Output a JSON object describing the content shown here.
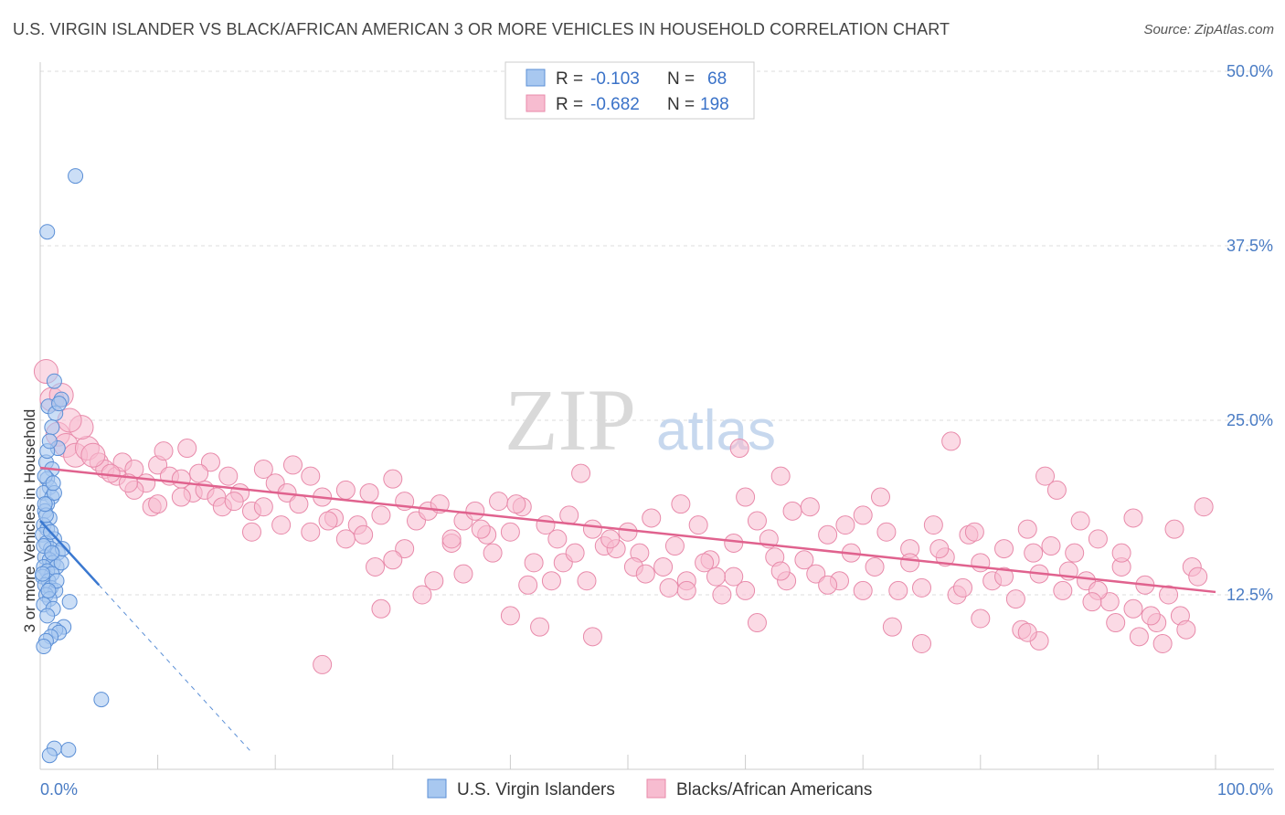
{
  "title": "U.S. VIRGIN ISLANDER VS BLACK/AFRICAN AMERICAN 3 OR MORE VEHICLES IN HOUSEHOLD CORRELATION CHART",
  "source": "Source: ZipAtlas.com",
  "watermark": {
    "zip": "ZIP",
    "atlas": "atlas"
  },
  "colors": {
    "blue_fill": "#a8c8f0",
    "blue_stroke": "#5b8fd6",
    "blue_line": "#3a78d0",
    "pink_fill": "#f7bcd0",
    "pink_stroke": "#e88aaa",
    "pink_line": "#e0628e",
    "grid": "#dddddd",
    "tick": "#4a7cc4"
  },
  "legend": {
    "r_label": "R = ",
    "n_label": "N = ",
    "entries": [
      {
        "r": "-0.103",
        "n": "68"
      },
      {
        "r": "-0.682",
        "n": "198"
      }
    ]
  },
  "chart_data": {
    "type": "scatter",
    "xlabel": "",
    "ylabel": "3 or more Vehicles in Household",
    "xlim": [
      0,
      100
    ],
    "ylim": [
      0,
      50
    ],
    "x_tick_labels": [
      "0.0%",
      "100.0%"
    ],
    "y_ticks": [
      12.5,
      25.0,
      37.5,
      50.0
    ],
    "y_tick_labels": [
      "12.5%",
      "25.0%",
      "37.5%",
      "50.0%"
    ],
    "grid": "horizontal dashed",
    "legend_position": "top-center",
    "series": [
      {
        "name": "U.S. Virgin Islanders",
        "color": "#a8c8f0",
        "trend": {
          "x0": 0,
          "y0": 17.8,
          "x1": 5,
          "y1": 13.2,
          "dashed_to_x": 18,
          "dashed_to_y": 1.2
        },
        "points": [
          [
            3.0,
            42.5
          ],
          [
            0.6,
            38.5
          ],
          [
            1.2,
            27.8
          ],
          [
            1.8,
            26.5
          ],
          [
            0.7,
            26.0
          ],
          [
            1.3,
            25.5
          ],
          [
            1.0,
            24.5
          ],
          [
            1.5,
            23.0
          ],
          [
            0.5,
            22.0
          ],
          [
            1.0,
            21.5
          ],
          [
            0.6,
            20.8
          ],
          [
            0.8,
            20.2
          ],
          [
            0.3,
            19.8
          ],
          [
            1.0,
            19.5
          ],
          [
            0.6,
            19.0
          ],
          [
            0.4,
            18.5
          ],
          [
            0.8,
            18.0
          ],
          [
            0.3,
            17.5
          ],
          [
            0.6,
            17.2
          ],
          [
            0.2,
            16.8
          ],
          [
            1.2,
            16.5
          ],
          [
            0.5,
            16.2
          ],
          [
            0.9,
            15.8
          ],
          [
            1.5,
            15.5
          ],
          [
            0.4,
            15.2
          ],
          [
            0.8,
            15.0
          ],
          [
            1.1,
            14.8
          ],
          [
            0.3,
            14.5
          ],
          [
            1.4,
            14.5
          ],
          [
            0.6,
            14.2
          ],
          [
            1.0,
            14.0
          ],
          [
            0.2,
            13.8
          ],
          [
            0.7,
            13.5
          ],
          [
            0.4,
            13.2
          ],
          [
            0.9,
            13.0
          ],
          [
            1.3,
            12.8
          ],
          [
            0.5,
            12.5
          ],
          [
            0.8,
            12.2
          ],
          [
            2.5,
            12.0
          ],
          [
            0.3,
            11.8
          ],
          [
            1.1,
            11.5
          ],
          [
            0.6,
            11.0
          ],
          [
            2.0,
            10.2
          ],
          [
            1.3,
            10.0
          ],
          [
            1.6,
            9.8
          ],
          [
            0.9,
            9.5
          ],
          [
            0.5,
            9.2
          ],
          [
            0.3,
            8.8
          ],
          [
            5.2,
            5.0
          ],
          [
            1.2,
            1.5
          ],
          [
            2.4,
            1.4
          ],
          [
            0.8,
            1.0
          ],
          [
            1.8,
            14.8
          ],
          [
            1.9,
            15.8
          ],
          [
            0.6,
            22.8
          ],
          [
            1.2,
            19.8
          ],
          [
            0.4,
            21.0
          ],
          [
            0.9,
            17.0
          ],
          [
            1.4,
            13.5
          ],
          [
            0.3,
            16.0
          ],
          [
            0.7,
            12.8
          ],
          [
            1.1,
            20.5
          ],
          [
            0.2,
            14.0
          ],
          [
            0.5,
            18.2
          ],
          [
            1.0,
            15.5
          ],
          [
            0.8,
            23.5
          ],
          [
            1.6,
            26.2
          ],
          [
            0.4,
            19.0
          ]
        ]
      },
      {
        "name": "Blacks/African Americans",
        "color": "#f7bcd0",
        "trend": {
          "x0": 0,
          "y0": 21.6,
          "x1": 100,
          "y1": 12.7
        },
        "points": [
          [
            0.5,
            28.5
          ],
          [
            1.0,
            26.5
          ],
          [
            1.5,
            24.0
          ],
          [
            2.2,
            23.2
          ],
          [
            3.0,
            22.5
          ],
          [
            4.0,
            23.0
          ],
          [
            5.0,
            22.0
          ],
          [
            5.5,
            21.5
          ],
          [
            6.5,
            21.0
          ],
          [
            7.0,
            22.0
          ],
          [
            8.0,
            21.5
          ],
          [
            9.0,
            20.5
          ],
          [
            10.0,
            21.8
          ],
          [
            11.0,
            21.0
          ],
          [
            12.0,
            20.8
          ],
          [
            10.5,
            22.8
          ],
          [
            12.5,
            23.0
          ],
          [
            13.0,
            19.8
          ],
          [
            14.0,
            20.0
          ],
          [
            15.0,
            19.5
          ],
          [
            16.0,
            21.0
          ],
          [
            17.0,
            19.8
          ],
          [
            18.0,
            18.5
          ],
          [
            19.0,
            21.5
          ],
          [
            20.0,
            20.5
          ],
          [
            21.0,
            19.8
          ],
          [
            22.0,
            19.0
          ],
          [
            23.0,
            21.0
          ],
          [
            24.0,
            19.5
          ],
          [
            25.0,
            18.0
          ],
          [
            26.0,
            20.0
          ],
          [
            27.0,
            17.5
          ],
          [
            28.0,
            19.8
          ],
          [
            29.0,
            18.2
          ],
          [
            30.0,
            20.8
          ],
          [
            31.0,
            19.2
          ],
          [
            32.0,
            17.8
          ],
          [
            33.0,
            18.5
          ],
          [
            34.0,
            19.0
          ],
          [
            35.0,
            16.2
          ],
          [
            36.0,
            17.8
          ],
          [
            37.0,
            18.5
          ],
          [
            38.0,
            16.8
          ],
          [
            39.0,
            19.2
          ],
          [
            40.0,
            17.0
          ],
          [
            41.0,
            18.8
          ],
          [
            42.0,
            14.8
          ],
          [
            43.0,
            17.5
          ],
          [
            44.0,
            16.5
          ],
          [
            45.0,
            18.2
          ],
          [
            46.0,
            21.2
          ],
          [
            47.0,
            17.2
          ],
          [
            48.0,
            16.0
          ],
          [
            49.0,
            15.8
          ],
          [
            50.0,
            17.0
          ],
          [
            51.0,
            15.5
          ],
          [
            52.0,
            18.0
          ],
          [
            53.0,
            14.5
          ],
          [
            54.0,
            16.0
          ],
          [
            55.0,
            13.5
          ],
          [
            56.0,
            17.5
          ],
          [
            57.0,
            15.0
          ],
          [
            58.0,
            12.5
          ],
          [
            59.0,
            13.8
          ],
          [
            60.0,
            19.5
          ],
          [
            61.0,
            17.8
          ],
          [
            62.0,
            16.5
          ],
          [
            63.0,
            21.0
          ],
          [
            64.0,
            18.5
          ],
          [
            65.0,
            15.0
          ],
          [
            66.0,
            14.0
          ],
          [
            67.0,
            16.8
          ],
          [
            68.0,
            13.5
          ],
          [
            69.0,
            15.5
          ],
          [
            70.0,
            18.2
          ],
          [
            71.0,
            14.5
          ],
          [
            72.0,
            17.0
          ],
          [
            73.0,
            12.8
          ],
          [
            74.0,
            15.8
          ],
          [
            75.0,
            13.0
          ],
          [
            76.0,
            17.5
          ],
          [
            77.0,
            15.2
          ],
          [
            78.0,
            12.5
          ],
          [
            79.0,
            16.8
          ],
          [
            80.0,
            14.8
          ],
          [
            81.0,
            13.5
          ],
          [
            82.0,
            15.8
          ],
          [
            83.0,
            12.2
          ],
          [
            84.0,
            17.2
          ],
          [
            85.0,
            14.0
          ],
          [
            86.0,
            16.0
          ],
          [
            87.0,
            12.8
          ],
          [
            88.0,
            15.5
          ],
          [
            89.0,
            13.5
          ],
          [
            90.0,
            16.5
          ],
          [
            91.0,
            12.0
          ],
          [
            92.0,
            14.5
          ],
          [
            93.0,
            11.5
          ],
          [
            94.0,
            13.2
          ],
          [
            95.0,
            10.5
          ],
          [
            96.0,
            12.5
          ],
          [
            97.0,
            11.0
          ],
          [
            98.0,
            14.5
          ],
          [
            99.0,
            18.8
          ],
          [
            59.5,
            23.0
          ],
          [
            77.5,
            23.5
          ],
          [
            85.5,
            21.0
          ],
          [
            86.5,
            20.0
          ],
          [
            47.0,
            9.5
          ],
          [
            61.0,
            10.5
          ],
          [
            72.5,
            10.2
          ],
          [
            75.0,
            9.0
          ],
          [
            80.0,
            10.8
          ],
          [
            83.5,
            10.0
          ],
          [
            85.0,
            9.2
          ],
          [
            91.5,
            10.5
          ],
          [
            93.5,
            9.5
          ],
          [
            95.5,
            9.0
          ],
          [
            97.5,
            10.0
          ],
          [
            96.5,
            17.2
          ],
          [
            93.0,
            18.0
          ],
          [
            88.5,
            17.8
          ],
          [
            84.0,
            9.8
          ],
          [
            90.0,
            12.8
          ],
          [
            78.5,
            13.0
          ],
          [
            70.0,
            12.8
          ],
          [
            67.0,
            13.2
          ],
          [
            63.5,
            13.5
          ],
          [
            60.0,
            12.8
          ],
          [
            56.5,
            14.8
          ],
          [
            53.5,
            13.0
          ],
          [
            50.5,
            14.5
          ],
          [
            46.5,
            13.5
          ],
          [
            44.5,
            14.8
          ],
          [
            41.5,
            13.2
          ],
          [
            38.5,
            15.5
          ],
          [
            36.0,
            14.0
          ],
          [
            33.5,
            13.5
          ],
          [
            31.0,
            15.8
          ],
          [
            28.5,
            14.5
          ],
          [
            26.0,
            16.5
          ],
          [
            23.0,
            17.0
          ],
          [
            20.5,
            17.5
          ],
          [
            18.0,
            17.0
          ],
          [
            15.5,
            18.8
          ],
          [
            14.5,
            22.0
          ],
          [
            12.0,
            19.5
          ],
          [
            9.5,
            18.8
          ],
          [
            8.0,
            20.0
          ],
          [
            6.0,
            21.2
          ],
          [
            4.5,
            22.5
          ],
          [
            3.5,
            24.5
          ],
          [
            2.5,
            25.0
          ],
          [
            1.8,
            26.8
          ],
          [
            7.5,
            20.5
          ],
          [
            10.0,
            19.0
          ],
          [
            13.5,
            21.2
          ],
          [
            16.5,
            19.2
          ],
          [
            19.0,
            18.8
          ],
          [
            21.5,
            21.8
          ],
          [
            24.5,
            17.8
          ],
          [
            27.5,
            16.8
          ],
          [
            30.0,
            15.0
          ],
          [
            32.5,
            12.5
          ],
          [
            35.0,
            16.5
          ],
          [
            37.5,
            17.2
          ],
          [
            40.5,
            19.0
          ],
          [
            43.5,
            13.5
          ],
          [
            45.5,
            15.5
          ],
          [
            48.5,
            16.5
          ],
          [
            51.5,
            14.0
          ],
          [
            54.5,
            19.0
          ],
          [
            57.5,
            13.8
          ],
          [
            59.0,
            16.2
          ],
          [
            62.5,
            15.2
          ],
          [
            65.5,
            18.8
          ],
          [
            68.5,
            17.5
          ],
          [
            71.5,
            19.5
          ],
          [
            74.0,
            14.8
          ],
          [
            76.5,
            15.8
          ],
          [
            79.5,
            17.0
          ],
          [
            82.0,
            13.8
          ],
          [
            84.5,
            15.5
          ],
          [
            87.5,
            14.2
          ],
          [
            89.5,
            12.0
          ],
          [
            92.0,
            15.5
          ],
          [
            94.5,
            11.0
          ],
          [
            98.5,
            13.8
          ],
          [
            24.0,
            7.5
          ],
          [
            29.0,
            11.5
          ],
          [
            40.0,
            11.0
          ],
          [
            55.0,
            12.8
          ],
          [
            42.5,
            10.2
          ],
          [
            63.0,
            14.2
          ]
        ]
      }
    ]
  },
  "bottom_legend": {
    "items": [
      {
        "label": "U.S. Virgin Islanders"
      },
      {
        "label": "Blacks/African Americans"
      }
    ]
  }
}
